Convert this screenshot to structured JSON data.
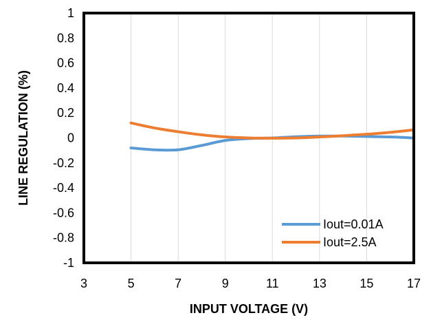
{
  "chart_data": {
    "type": "line",
    "title": "",
    "xlabel": "INPUT VOLTAGE  (V)",
    "ylabel": "LINE REGULATION  (%)",
    "xlim": [
      3,
      17
    ],
    "ylim": [
      -1,
      1
    ],
    "xticks": [
      3,
      5,
      7,
      9,
      11,
      13,
      15,
      17
    ],
    "yticks": [
      1,
      0.8,
      0.6,
      0.4,
      0.2,
      0,
      -0.2,
      -0.4,
      -0.6,
      -0.8,
      -1
    ],
    "ytick_labels": [
      "1",
      "0.8",
      "0.6",
      "0.4",
      "0.2",
      "0",
      "-0.2",
      "-0.4",
      "-0.6",
      "-0.8",
      "-1"
    ],
    "xtick_labels": [
      "3",
      "5",
      "7",
      "9",
      "11",
      "13",
      "15",
      "17"
    ],
    "grid": {
      "x": true,
      "y": false
    },
    "legend_position": "bottom-right",
    "series": [
      {
        "name": "Iout=0.01A",
        "color": "#5B9BD5",
        "x": [
          5,
          6,
          7,
          8,
          9,
          10,
          11,
          12,
          13,
          14,
          15,
          16,
          17
        ],
        "y": [
          -0.08,
          -0.095,
          -0.095,
          -0.06,
          -0.02,
          -0.005,
          0.0,
          0.01,
          0.015,
          0.015,
          0.012,
          0.008,
          0.0
        ]
      },
      {
        "name": "Iout=2.5A",
        "color": "#ED7D31",
        "x": [
          5,
          6,
          7,
          8,
          9,
          10,
          11,
          12,
          13,
          14,
          15,
          16,
          17
        ],
        "y": [
          0.12,
          0.08,
          0.05,
          0.025,
          0.008,
          0.0,
          -0.002,
          0.0,
          0.008,
          0.018,
          0.03,
          0.045,
          0.065
        ]
      }
    ]
  }
}
